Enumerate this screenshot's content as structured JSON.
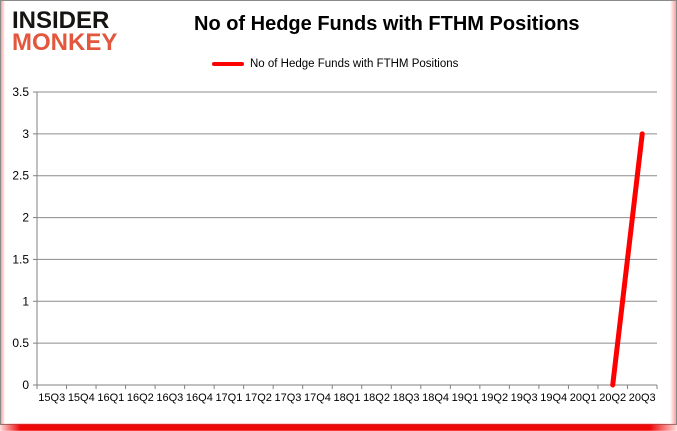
{
  "branding": {
    "logo_line1": "INSIDER",
    "logo_line2": "MONKEY",
    "logo_color_top": "#151412",
    "logo_color_bottom": "#e2573d"
  },
  "header": {
    "title": "No of Hedge Funds with FTHM Positions"
  },
  "legend": {
    "items": [
      {
        "label": "No of Hedge Funds with FTHM Positions",
        "color": "#ff0000"
      }
    ]
  },
  "chart_data": {
    "type": "line",
    "title": "No of Hedge Funds with FTHM Positions",
    "categories": [
      "15Q3",
      "15Q4",
      "16Q1",
      "16Q2",
      "16Q3",
      "16Q4",
      "17Q1",
      "17Q2",
      "17Q3",
      "17Q4",
      "18Q1",
      "18Q2",
      "18Q3",
      "18Q4",
      "19Q1",
      "19Q2",
      "19Q3",
      "19Q4",
      "20Q1",
      "20Q2",
      "20Q3"
    ],
    "series": [
      {
        "name": "No of Hedge Funds with FTHM Positions",
        "color": "#ff0000",
        "values": [
          null,
          null,
          null,
          null,
          null,
          null,
          null,
          null,
          null,
          null,
          null,
          null,
          null,
          null,
          null,
          null,
          null,
          null,
          null,
          0,
          3
        ]
      }
    ],
    "xlabel": "",
    "ylabel": "",
    "ylim": [
      0,
      3.5
    ],
    "yticks": [
      0,
      0.5,
      1,
      1.5,
      2,
      2.5,
      3,
      3.5
    ],
    "grid": true,
    "legend_position": "top",
    "axis_color": "#808080",
    "grid_color": "#8c8c8c",
    "line_width": 5,
    "tick_label_size": 11,
    "ytick_label_size": 12
  }
}
